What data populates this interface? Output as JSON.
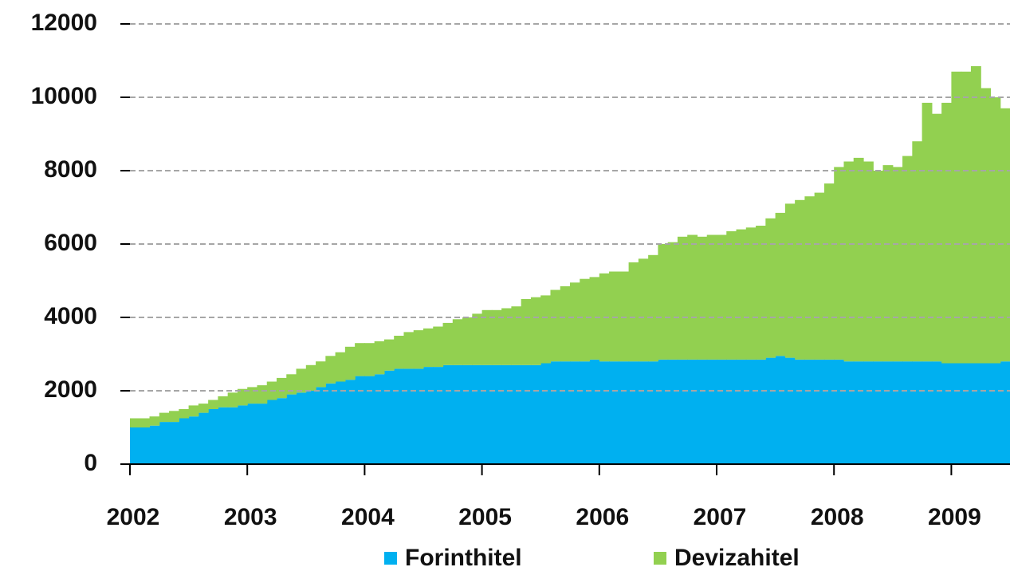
{
  "chart_data": {
    "type": "stacked_area",
    "categories": [
      "2002",
      null,
      null,
      null,
      null,
      null,
      null,
      null,
      null,
      null,
      null,
      null,
      "2003",
      null,
      null,
      null,
      null,
      null,
      null,
      null,
      null,
      null,
      null,
      null,
      "2004",
      null,
      null,
      null,
      null,
      null,
      null,
      null,
      null,
      null,
      null,
      null,
      "2005",
      null,
      null,
      null,
      null,
      null,
      null,
      null,
      null,
      null,
      null,
      null,
      "2006",
      null,
      null,
      null,
      null,
      null,
      null,
      null,
      null,
      null,
      null,
      null,
      "2007",
      null,
      null,
      null,
      null,
      null,
      null,
      null,
      null,
      null,
      null,
      null,
      "2008",
      null,
      null,
      null,
      null,
      null,
      null,
      null,
      null,
      null,
      null,
      null,
      "2009",
      null,
      null,
      null,
      null,
      null
    ],
    "series": [
      {
        "name": "Forinthitel",
        "color": "#00b0f0",
        "values": [
          1000,
          1000,
          1050,
          1150,
          1150,
          1250,
          1300,
          1400,
          1500,
          1550,
          1550,
          1600,
          1650,
          1650,
          1750,
          1800,
          1900,
          1950,
          2000,
          2100,
          2200,
          2250,
          2300,
          2400,
          2400,
          2450,
          2550,
          2600,
          2600,
          2600,
          2650,
          2650,
          2700,
          2700,
          2700,
          2700,
          2700,
          2700,
          2700,
          2700,
          2700,
          2700,
          2750,
          2800,
          2800,
          2800,
          2800,
          2850,
          2800,
          2800,
          2800,
          2800,
          2800,
          2800,
          2850,
          2850,
          2850,
          2850,
          2850,
          2850,
          2850,
          2850,
          2850,
          2850,
          2850,
          2900,
          2950,
          2900,
          2850,
          2850,
          2850,
          2850,
          2850,
          2800,
          2800,
          2800,
          2800,
          2800,
          2800,
          2800,
          2800,
          2800,
          2800,
          2750,
          2750,
          2750,
          2750,
          2750,
          2750,
          2800
        ]
      },
      {
        "name": "Devizahitel",
        "color": "#92d050",
        "values": [
          250,
          250,
          250,
          250,
          300,
          250,
          300,
          250,
          250,
          300,
          400,
          450,
          450,
          500,
          500,
          550,
          550,
          650,
          700,
          700,
          750,
          800,
          900,
          900,
          900,
          900,
          850,
          900,
          1000,
          1050,
          1050,
          1100,
          1150,
          1250,
          1300,
          1400,
          1500,
          1500,
          1550,
          1600,
          1800,
          1850,
          1850,
          1950,
          2050,
          2150,
          2250,
          2250,
          2400,
          2450,
          2450,
          2700,
          2800,
          2900,
          3150,
          3200,
          3350,
          3400,
          3350,
          3400,
          3400,
          3500,
          3550,
          3600,
          3650,
          3800,
          3900,
          4200,
          4350,
          4450,
          4550,
          4800,
          5250,
          5450,
          5550,
          5450,
          5200,
          5350,
          5300,
          5600,
          6000,
          7050,
          6750,
          7100,
          7950,
          7950,
          8100,
          7500,
          7250,
          6900
        ]
      }
    ],
    "ylim": [
      0,
      12000
    ],
    "yticks": [
      0,
      2000,
      4000,
      6000,
      8000,
      10000,
      12000
    ],
    "grid": true
  }
}
